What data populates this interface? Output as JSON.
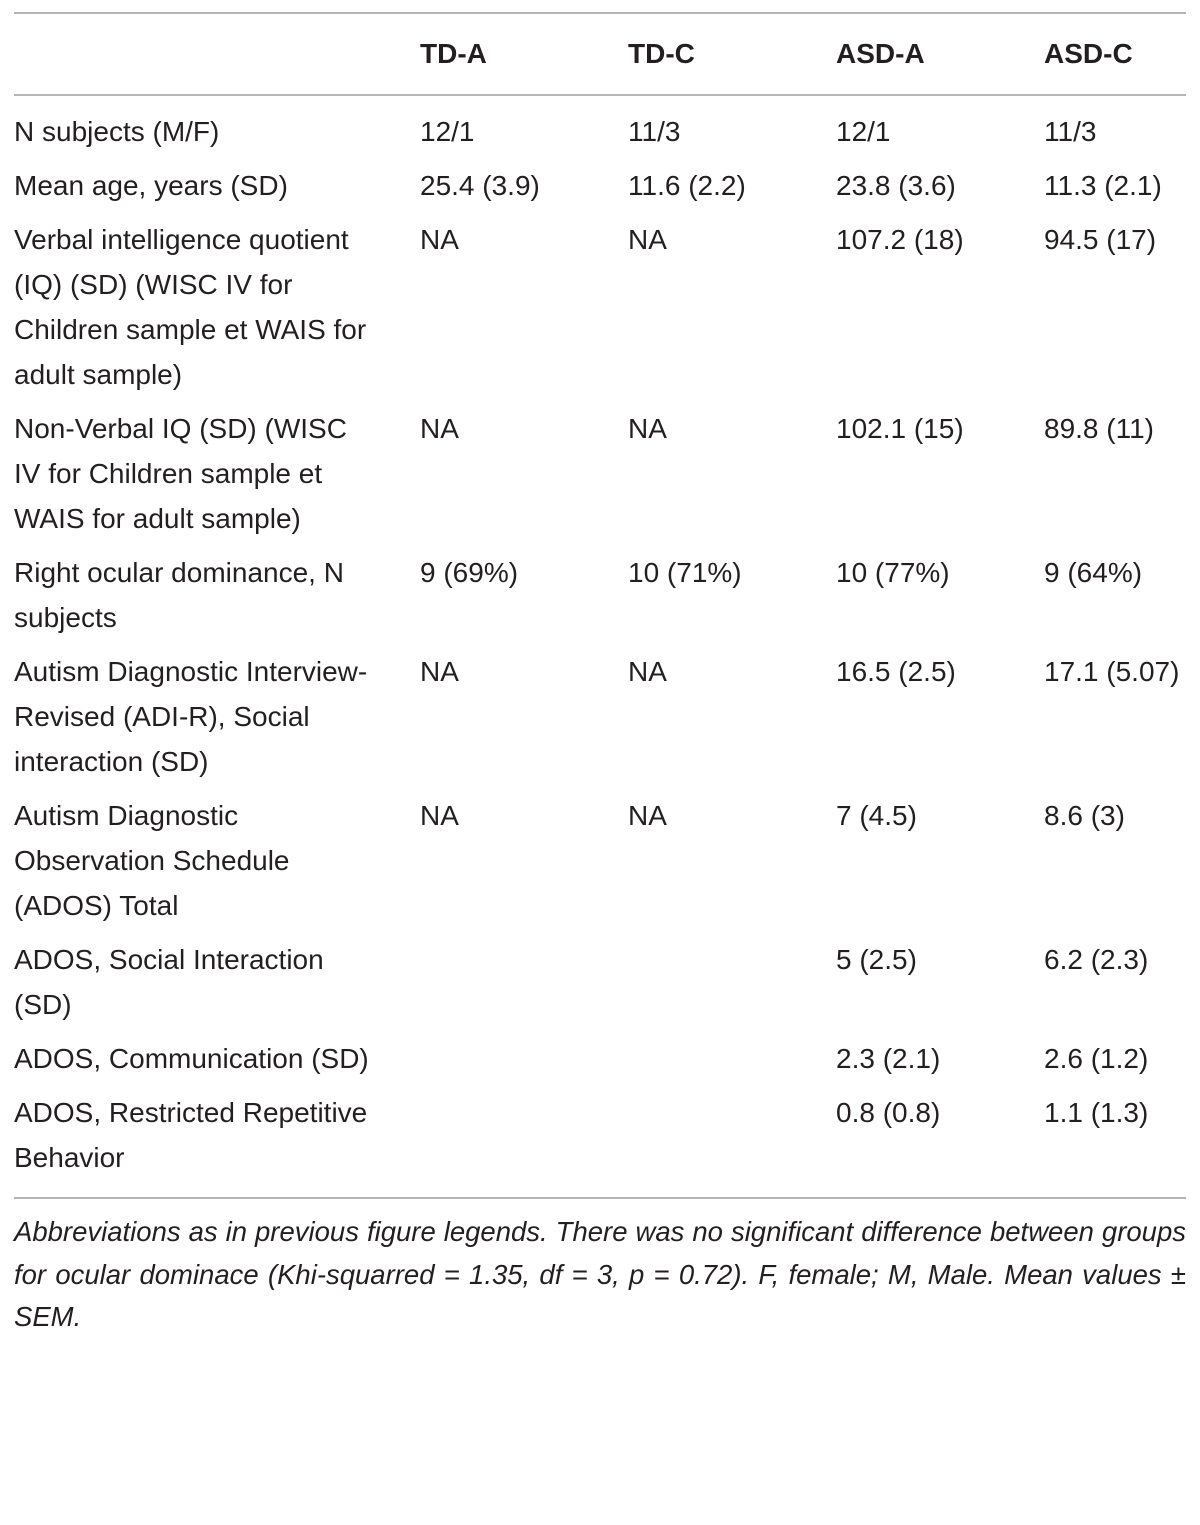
{
  "table": {
    "header": [
      null,
      "TD-A",
      "TD-C",
      "ASD-A",
      "ASD-C"
    ],
    "rows": [
      [
        "N subjects (M/F)",
        "12/1",
        "11/3",
        "12/1",
        "11/3"
      ],
      [
        "Mean age, years (SD)",
        "25.4 (3.9)",
        "11.6 (2.2)",
        "23.8 (3.6)",
        "11.3 (2.1)"
      ],
      [
        "Verbal intelligence quotient (IQ) (SD) (WISC IV for Children sample et WAIS for adult sample)",
        "NA",
        "NA",
        "107.2 (18)",
        "94.5 (17)"
      ],
      [
        "Non-Verbal IQ (SD) (WISC IV for Children sample et WAIS for adult sample)",
        "NA",
        "NA",
        "102.1 (15)",
        "89.8 (11)"
      ],
      [
        "Right ocular dominance, N subjects",
        "9 (69%)",
        "10 (71%)",
        "10 (77%)",
        "9 (64%)"
      ],
      [
        "Autism Diagnostic Interview-Revised (ADI-R), Social interaction (SD)",
        "NA",
        "NA",
        "16.5 (2.5)",
        "17.1 (5.07)"
      ],
      [
        "Autism Diagnostic Observation Schedule (ADOS) Total",
        "NA",
        "NA",
        "7 (4.5)",
        "8.6 (3)"
      ],
      [
        "ADOS, Social Interaction (SD)",
        null,
        null,
        "5 (2.5)",
        "6.2 (2.3)"
      ],
      [
        "ADOS, Communication (SD)",
        null,
        null,
        "2.3 (2.1)",
        "2.6 (1.2)"
      ],
      [
        "ADOS, Restricted Repetitive Behavior",
        null,
        null,
        "0.8 (0.8)",
        "1.1 (1.3)"
      ]
    ],
    "footnote": "Abbreviations as in previous figure legends. There was no significant difference between groups for ocular dominace (Khi-squarred = 1.35, df = 3, p = 0.72). F, female; M, Male. Mean values ± SEM."
  }
}
